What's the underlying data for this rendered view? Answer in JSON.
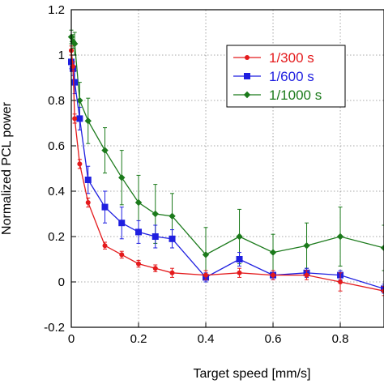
{
  "chart_data": {
    "type": "line",
    "xlabel": "Target speed [mm/s]",
    "ylabel": "Normalized PCL power",
    "xlim": [
      0,
      0.93
    ],
    "ylim": [
      -0.2,
      1.2
    ],
    "xticks": [
      0,
      0.2,
      0.4,
      0.6,
      0.8
    ],
    "yticks": [
      -0.2,
      0,
      0.2,
      0.4,
      0.6,
      0.8,
      1,
      1.2
    ],
    "tick_labels_x": [
      "0",
      "0.2",
      "0.4",
      "0.6",
      "0.8"
    ],
    "tick_labels_y": [
      "-0.2",
      "0",
      "0.2",
      "0.4",
      "0.6",
      "0.8",
      "1",
      "1.2"
    ],
    "grid": true,
    "legend_position": "top-right",
    "series": [
      {
        "name": "1/300 s",
        "color": "#e41a1c",
        "marker": "circle",
        "x": [
          0,
          0.005,
          0.01,
          0.025,
          0.05,
          0.1,
          0.15,
          0.2,
          0.25,
          0.3,
          0.4,
          0.5,
          0.6,
          0.7,
          0.8,
          0.93
        ],
        "y": [
          1.02,
          0.95,
          0.72,
          0.52,
          0.35,
          0.16,
          0.12,
          0.08,
          0.06,
          0.04,
          0.03,
          0.04,
          0.03,
          0.03,
          0.0,
          -0.04
        ],
        "err": [
          0.02,
          0.02,
          0.02,
          0.02,
          0.02,
          0.015,
          0.015,
          0.015,
          0.015,
          0.02,
          0.02,
          0.02,
          0.02,
          0.02,
          0.04,
          0.02
        ]
      },
      {
        "name": "1/600 s",
        "color": "#1f1fe0",
        "marker": "square",
        "x": [
          0,
          0.005,
          0.01,
          0.025,
          0.05,
          0.1,
          0.15,
          0.2,
          0.25,
          0.3,
          0.4,
          0.5,
          0.6,
          0.7,
          0.8,
          0.93
        ],
        "y": [
          0.97,
          0.94,
          0.88,
          0.72,
          0.45,
          0.33,
          0.26,
          0.22,
          0.2,
          0.19,
          0.02,
          0.1,
          0.03,
          0.04,
          0.03,
          -0.03
        ],
        "err": [
          0.03,
          0.03,
          0.05,
          0.05,
          0.06,
          0.07,
          0.07,
          0.05,
          0.05,
          0.04,
          0.02,
          0.03,
          0.02,
          0.02,
          0.02,
          0.02
        ]
      },
      {
        "name": "1/1000 s",
        "color": "#1b7a1b",
        "marker": "diamond",
        "x": [
          0,
          0.005,
          0.01,
          0.025,
          0.05,
          0.1,
          0.15,
          0.2,
          0.25,
          0.3,
          0.4,
          0.5,
          0.6,
          0.7,
          0.8,
          0.93
        ],
        "y": [
          1.08,
          1.06,
          1.05,
          0.8,
          0.71,
          0.58,
          0.46,
          0.35,
          0.3,
          0.29,
          0.12,
          0.2,
          0.13,
          0.16,
          0.2,
          0.15
        ],
        "err": [
          0.03,
          0.03,
          0.05,
          0.08,
          0.1,
          0.1,
          0.12,
          0.12,
          0.13,
          0.1,
          0.12,
          0.12,
          0.08,
          0.1,
          0.13,
          0.1
        ]
      }
    ]
  }
}
